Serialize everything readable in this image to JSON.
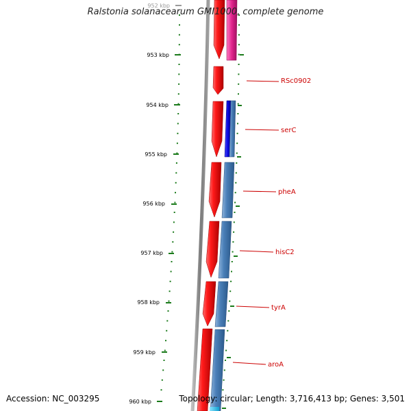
{
  "title": "Ralstonia solanacearum GMI1000, complete genome",
  "footer": {
    "accession": "Accession: NC_003295",
    "topology": "Topology: circular; Length: 3,716,413 bp; Genes: 3,501"
  },
  "tick_labels": [
    "952 kbp",
    "953 kbp",
    "954 kbp",
    "955 kbp",
    "956 kbp",
    "957 kbp",
    "958 kbp",
    "959 kbp",
    "960 kbp"
  ],
  "gene_labels": [
    "RSc0902",
    "serC",
    "pheA",
    "hisC2",
    "tyrA",
    "aroA"
  ],
  "colors": {
    "backbone": "#8a8a8a",
    "forward_gene": "#ee0000",
    "reverse_gene": "#4a7fb8",
    "reverse_gene_highlight": "#1010dd",
    "pink_gene": "#e0248c",
    "cyan_gene": "#22c0ee",
    "tick": "#1a7a1a",
    "label_line": "#cc0000"
  }
}
